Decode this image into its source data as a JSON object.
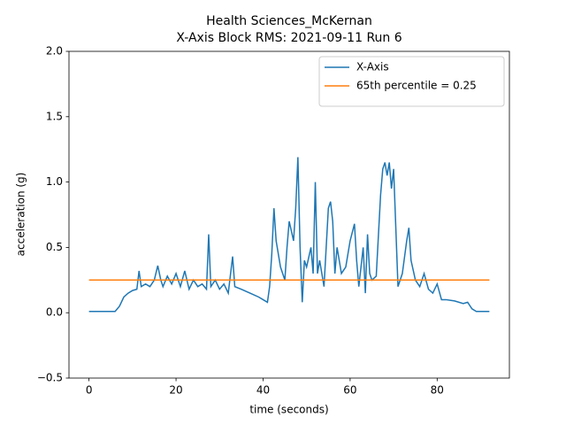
{
  "chart_data": {
    "type": "line",
    "title": "Health Sciences_McKernan",
    "subtitle": "X-Axis Block RMS: 2021-09-11 Run 6",
    "x_label": "time (seconds)",
    "y_label": "acceleration (g)",
    "xlim": [
      -4.6,
      96.6
    ],
    "ylim": [
      -0.5,
      2.0
    ],
    "xticks": [
      0,
      20,
      40,
      60,
      80
    ],
    "yticks": [
      {
        "value": -0.5,
        "label": "−0.5"
      },
      {
        "value": 0,
        "label": "0.0"
      },
      0.5,
      {
        "value": 1,
        "label": "1.0"
      },
      1.5,
      {
        "value": 2,
        "label": "2.0"
      }
    ],
    "legend": "upper right",
    "series": [
      {
        "name": "X-Axis",
        "color": "#1f77b4",
        "x": [
          0,
          6,
          7,
          8,
          9,
          10,
          11,
          11.5,
          12,
          13,
          14,
          15,
          15.8,
          16.5,
          17,
          18,
          19,
          20,
          21,
          22,
          23,
          24,
          25,
          26,
          27,
          27.5,
          28,
          29,
          30,
          31,
          32,
          33,
          33.5,
          35,
          37,
          39,
          40,
          41,
          41.5,
          42,
          42.5,
          43,
          44,
          45,
          45.5,
          46,
          47,
          47.5,
          48,
          48.5,
          49,
          49.5,
          50,
          51,
          51.5,
          52,
          52.5,
          53,
          54,
          55,
          55.5,
          56,
          56.5,
          57,
          58,
          59,
          60,
          61,
          61.5,
          62,
          63,
          63.5,
          64,
          64.5,
          65,
          66,
          67,
          67.5,
          68,
          68.5,
          69,
          69.5,
          70,
          71,
          72,
          73,
          73.5,
          74,
          75,
          76,
          77,
          78,
          79,
          80,
          81,
          82,
          84,
          86,
          87,
          88,
          89,
          92
        ],
        "values": [
          0.01,
          0.01,
          0.05,
          0.12,
          0.15,
          0.17,
          0.18,
          0.32,
          0.2,
          0.22,
          0.2,
          0.25,
          0.36,
          0.25,
          0.2,
          0.28,
          0.22,
          0.3,
          0.2,
          0.32,
          0.18,
          0.25,
          0.2,
          0.22,
          0.18,
          0.6,
          0.2,
          0.25,
          0.18,
          0.22,
          0.15,
          0.43,
          0.2,
          0.18,
          0.15,
          0.12,
          0.1,
          0.08,
          0.2,
          0.45,
          0.8,
          0.55,
          0.35,
          0.25,
          0.5,
          0.7,
          0.55,
          0.8,
          1.19,
          0.5,
          0.08,
          0.4,
          0.35,
          0.5,
          0.3,
          1.0,
          0.3,
          0.4,
          0.2,
          0.8,
          0.85,
          0.7,
          0.3,
          0.5,
          0.3,
          0.35,
          0.55,
          0.68,
          0.4,
          0.2,
          0.5,
          0.15,
          0.6,
          0.3,
          0.25,
          0.28,
          0.9,
          1.1,
          1.15,
          1.05,
          1.15,
          0.95,
          1.1,
          0.2,
          0.3,
          0.55,
          0.65,
          0.4,
          0.25,
          0.2,
          0.3,
          0.18,
          0.15,
          0.22,
          0.1,
          0.1,
          0.09,
          0.07,
          0.08,
          0.03,
          0.01,
          0.01
        ]
      },
      {
        "name": "65th percentile = 0.25",
        "color": "#ff7f0e",
        "x": [
          0,
          92
        ],
        "values": [
          0.25,
          0.25
        ]
      }
    ]
  }
}
